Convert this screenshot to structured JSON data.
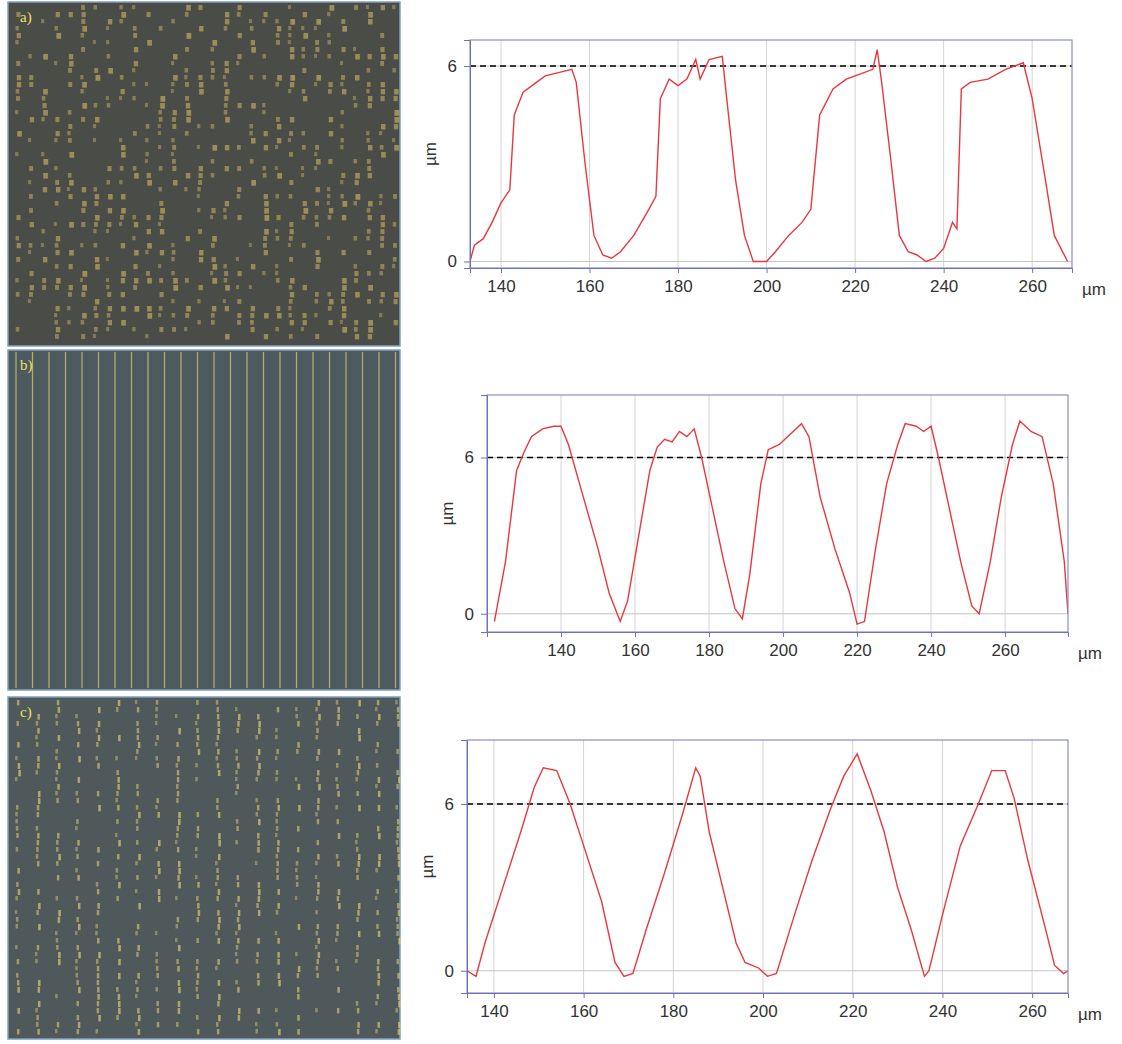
{
  "chart_data": [
    {
      "type": "line",
      "panel_label": "a)",
      "color": "#e8383c",
      "grid": true,
      "x_label": "µm",
      "y_label": "µm",
      "xlim": [
        133,
        269
      ],
      "ylim": [
        -0.2,
        6.8
      ],
      "xticks": [
        140,
        160,
        180,
        200,
        220,
        240,
        260
      ],
      "yticks": [
        0,
        6
      ],
      "reference_line": {
        "value": 6,
        "color": "#000000",
        "line_style": "dashed"
      },
      "x": [
        133,
        134,
        136,
        138,
        140,
        142,
        143,
        145,
        148,
        150,
        153,
        156,
        157,
        159,
        161,
        163,
        165,
        167,
        170,
        173,
        175,
        176,
        178,
        180,
        182,
        184,
        185,
        187,
        190,
        191,
        193,
        195,
        197,
        200,
        202,
        205,
        208,
        210,
        212,
        215,
        218,
        222,
        224,
        225,
        226,
        228,
        230,
        232,
        234,
        236,
        238,
        240,
        242,
        243,
        244,
        246,
        250,
        254,
        258,
        260,
        263,
        265,
        268
      ],
      "values": [
        0,
        0.5,
        0.7,
        1.2,
        1.8,
        2.2,
        4.5,
        5.2,
        5.5,
        5.7,
        5.8,
        5.9,
        5.5,
        3,
        0.8,
        0.2,
        0.1,
        0.3,
        0.8,
        1.5,
        2.0,
        5.0,
        5.6,
        5.4,
        5.6,
        6.2,
        5.6,
        6.2,
        6.3,
        5.0,
        2.5,
        0.8,
        0,
        0,
        0.3,
        0.8,
        1.2,
        1.6,
        4.5,
        5.3,
        5.6,
        5.8,
        5.9,
        6.5,
        5.5,
        3.2,
        0.8,
        0.3,
        0.2,
        0,
        0.1,
        0.4,
        1.2,
        1.0,
        5.3,
        5.5,
        5.6,
        5.9,
        6.1,
        5.0,
        2.5,
        0.8,
        0
      ]
    },
    {
      "type": "line",
      "panel_label": "b)",
      "color": "#e8383c",
      "grid": true,
      "x_label": "µm",
      "y_label": "µm",
      "xlim": [
        120,
        277
      ],
      "ylim": [
        -0.7,
        8.4
      ],
      "xticks": [
        140,
        160,
        180,
        200,
        220,
        240,
        260
      ],
      "yticks": [
        0,
        6
      ],
      "reference_line": {
        "value": 6,
        "color": "#000000",
        "line_style": "dashed"
      },
      "x": [
        122,
        125,
        128,
        130,
        132,
        135,
        138,
        140,
        142,
        146,
        150,
        153,
        156,
        158,
        161,
        164,
        166,
        168,
        170,
        172,
        174,
        176,
        178,
        181,
        184,
        187,
        189,
        191,
        194,
        196,
        199,
        202,
        205,
        207,
        210,
        214,
        218,
        220,
        222,
        225,
        228,
        231,
        233,
        236,
        238,
        240,
        242,
        245,
        248,
        251,
        253,
        256,
        259,
        262,
        264,
        267,
        270,
        273,
        276,
        277
      ],
      "values": [
        -0.3,
        2,
        5.5,
        6.2,
        6.8,
        7.1,
        7.2,
        7.2,
        6.5,
        4.5,
        2.5,
        0.8,
        -0.3,
        0.5,
        3,
        5.5,
        6.4,
        6.7,
        6.6,
        7.0,
        6.8,
        7.1,
        6.0,
        4,
        2,
        0.2,
        -0.2,
        1.5,
        5,
        6.3,
        6.5,
        6.9,
        7.3,
        6.8,
        4.5,
        2.5,
        0.8,
        -0.4,
        -0.3,
        2.5,
        5,
        6.5,
        7.3,
        7.2,
        7.0,
        7.2,
        6.0,
        4,
        2,
        0.3,
        0,
        2,
        4.5,
        6.5,
        7.4,
        7.0,
        6.8,
        5,
        2,
        0
      ]
    },
    {
      "type": "line",
      "panel_label": "c)",
      "color": "#e8383c",
      "grid": true,
      "x_label": "µm",
      "y_label": "µm",
      "xlim": [
        134,
        268
      ],
      "ylim": [
        -0.8,
        8.3
      ],
      "xticks": [
        140,
        160,
        180,
        200,
        220,
        240,
        260
      ],
      "yticks": [
        0,
        6
      ],
      "reference_line": {
        "value": 6,
        "color": "#000000",
        "line_style": "dashed"
      },
      "x": [
        134,
        136,
        138,
        142,
        146,
        149,
        151,
        154,
        157,
        160,
        164,
        167,
        169,
        171,
        174,
        178,
        182,
        185,
        186,
        188,
        191,
        194,
        196,
        199,
        201,
        203,
        207,
        211,
        215,
        218,
        221,
        224,
        227,
        230,
        233,
        236,
        237,
        240,
        244,
        248,
        251,
        254,
        256,
        259,
        263,
        265,
        267,
        268
      ],
      "values": [
        0,
        -0.2,
        1,
        3,
        5,
        6.6,
        7.3,
        7.2,
        6,
        4.5,
        2.5,
        0.3,
        -0.2,
        -0.1,
        1.5,
        3.5,
        5.6,
        7.3,
        7.0,
        5,
        3,
        1,
        0.3,
        0.1,
        -0.2,
        -0.1,
        2,
        4,
        5.8,
        7.0,
        7.8,
        6.5,
        5,
        3,
        1.5,
        -0.2,
        0,
        2,
        4.5,
        6,
        7.2,
        7.2,
        6.2,
        4,
        1.5,
        0.2,
        -0.1,
        0
      ]
    }
  ]
}
